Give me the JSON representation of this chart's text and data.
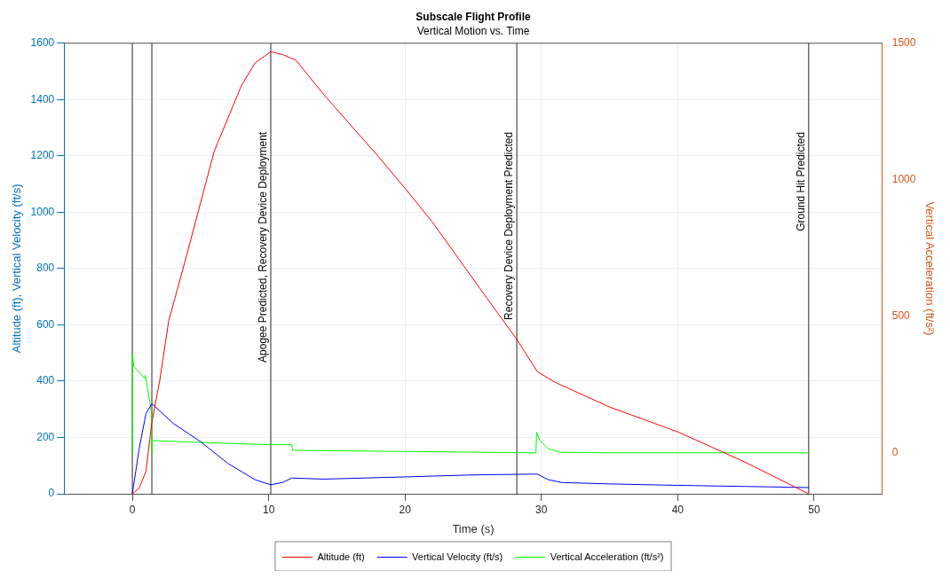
{
  "chart_data": {
    "type": "line",
    "title": "Subscale Flight Profile",
    "subtitle": "Vertical Motion vs. Time",
    "xlabel": "Time (s)",
    "ylabel": "Altitude (ft), Vertical Velocity (ft/s)",
    "y2label": "Vertical Acceleration (ft/s²)",
    "xlim": [
      -5,
      55
    ],
    "xticks": [
      0,
      10,
      20,
      30,
      40,
      50
    ],
    "ylim": [
      0,
      1600
    ],
    "yticks": [
      0,
      200,
      400,
      600,
      800,
      1000,
      1200,
      1400,
      1600
    ],
    "y2lim": [
      -150,
      1500
    ],
    "y2ticks": [
      0,
      500,
      1000,
      1500
    ],
    "grid": true,
    "legend": "bottom",
    "series": [
      {
        "name": "Altitude (ft)",
        "color": "#ff0000",
        "x": [
          0,
          0.5,
          1,
          1.43,
          2,
          2.67,
          4,
          6,
          8,
          9,
          10.15,
          11,
          12,
          14,
          16,
          18,
          20,
          22,
          24,
          26,
          28.2,
          29.7,
          31,
          35,
          40,
          45,
          49.6
        ],
        "values": [
          0,
          20,
          80,
          255,
          400,
          615,
          850,
          1216,
          1450,
          1530,
          1570,
          1560,
          1540,
          1420,
          1310,
          1200,
          1085,
          965,
          830,
          695,
          548,
          434,
          396,
          308,
          220,
          111,
          0
        ]
      },
      {
        "name": "Vertical Velocity (ft/s)",
        "color": "#0000ff",
        "x": [
          0,
          0.5,
          1,
          1.43,
          3,
          5,
          7,
          9,
          10.15,
          11,
          11.7,
          14,
          20,
          25,
          29.7,
          30.5,
          31.5,
          35,
          40,
          45,
          49.6
        ],
        "values": [
          0,
          160,
          285,
          320,
          250,
          185,
          108,
          50,
          32,
          40,
          56,
          52,
          60,
          67,
          70,
          50,
          40,
          35,
          30,
          26,
          22
        ]
      },
      {
        "name": "Vertical Acceleration (ft/s²)",
        "color": "#00ff00",
        "axis": "y2",
        "x": [
          0,
          0.01,
          0.1,
          0.5,
          0.9,
          0.95,
          1.0,
          1.4,
          1.43,
          1.45,
          1.5,
          5,
          10,
          11.7,
          11.75,
          20,
          29.6,
          29.65,
          29.9,
          30.5,
          31.4,
          35,
          49.6
        ],
        "values": [
          0,
          360,
          317,
          295,
          272,
          284,
          270,
          151,
          0,
          45,
          45,
          38,
          30,
          30,
          9,
          5,
          0,
          75,
          45,
          15,
          2,
          0,
          0
        ]
      }
    ],
    "ref_lines": [
      {
        "axis": "x",
        "value": 0,
        "color": "#6e6e6e"
      },
      {
        "axis": "x",
        "value": 1.43,
        "color": "#6e6e6e"
      },
      {
        "axis": "x",
        "value": 10.15,
        "label": "Apogee Predicted, Recovery Device Deployment",
        "color": "#6e6e6e"
      },
      {
        "axis": "x",
        "value": 28.2,
        "label": "Recovery Device Deployment Predicted",
        "color": "#6e6e6e"
      },
      {
        "axis": "x",
        "value": 49.6,
        "label": "Ground Hit Predicted",
        "color": "#6e6e6e"
      }
    ]
  }
}
